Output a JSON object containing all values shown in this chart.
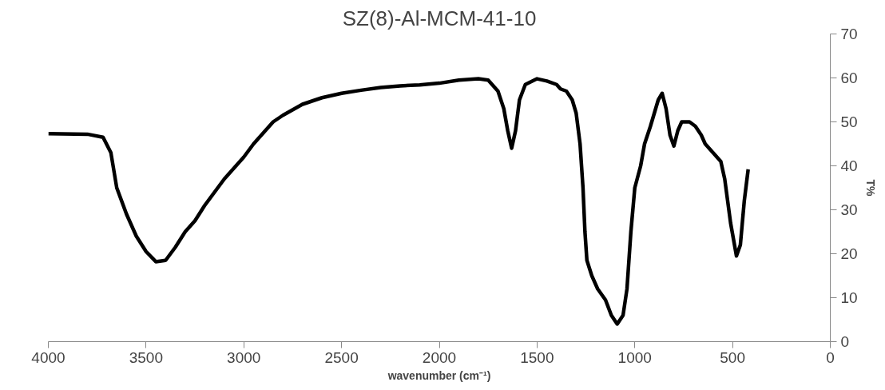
{
  "chart_data": {
    "type": "line",
    "title": "SZ(8)-Al-MCM-41-10",
    "xlabel": "wavenumber (cm⁻¹)",
    "ylabel": "T%",
    "xlim": [
      4000,
      0
    ],
    "xticks": [
      4000,
      3500,
      3000,
      2500,
      2000,
      1500,
      1000,
      500,
      0
    ],
    "ylim": [
      0,
      70
    ],
    "yticks": [
      0,
      10,
      20,
      30,
      40,
      50,
      60,
      70
    ],
    "grid": false,
    "marker": "none",
    "line_style": "solid",
    "series": [
      {
        "color": "#000000",
        "x": [
          4000,
          3800,
          3720,
          3680,
          3650,
          3600,
          3550,
          3500,
          3450,
          3400,
          3350,
          3300,
          3250,
          3200,
          3100,
          3000,
          2950,
          2900,
          2850,
          2800,
          2700,
          2600,
          2500,
          2400,
          2300,
          2200,
          2100,
          2000,
          1900,
          1800,
          1750,
          1700,
          1670,
          1650,
          1630,
          1610,
          1590,
          1560,
          1500,
          1450,
          1400,
          1380,
          1350,
          1320,
          1300,
          1280,
          1265,
          1255,
          1245,
          1220,
          1190,
          1150,
          1120,
          1090,
          1060,
          1040,
          1020,
          1000,
          970,
          950,
          920,
          880,
          860,
          840,
          820,
          800,
          780,
          760,
          720,
          690,
          660,
          640,
          600,
          560,
          540,
          510,
          480,
          460,
          440,
          420
        ],
        "values": [
          47.3,
          47.2,
          46.5,
          43,
          35,
          29,
          24,
          20.5,
          18.2,
          18.5,
          21.5,
          25,
          27.5,
          31,
          37,
          42,
          45,
          47.5,
          50,
          51.5,
          54,
          55.5,
          56.5,
          57.2,
          57.8,
          58.2,
          58.4,
          58.8,
          59.5,
          59.8,
          59.5,
          57,
          53,
          48,
          44,
          48,
          55,
          58.5,
          59.8,
          59.3,
          58.5,
          57.5,
          57,
          55,
          52,
          45,
          35,
          25,
          18.5,
          15,
          12,
          9.5,
          6,
          4,
          6,
          12,
          25,
          35,
          40,
          45,
          49,
          55,
          56.5,
          53,
          47,
          44.5,
          48,
          50,
          50,
          49,
          47,
          45,
          43,
          41,
          37,
          27,
          19.5,
          22,
          32,
          39.2
        ]
      }
    ]
  }
}
